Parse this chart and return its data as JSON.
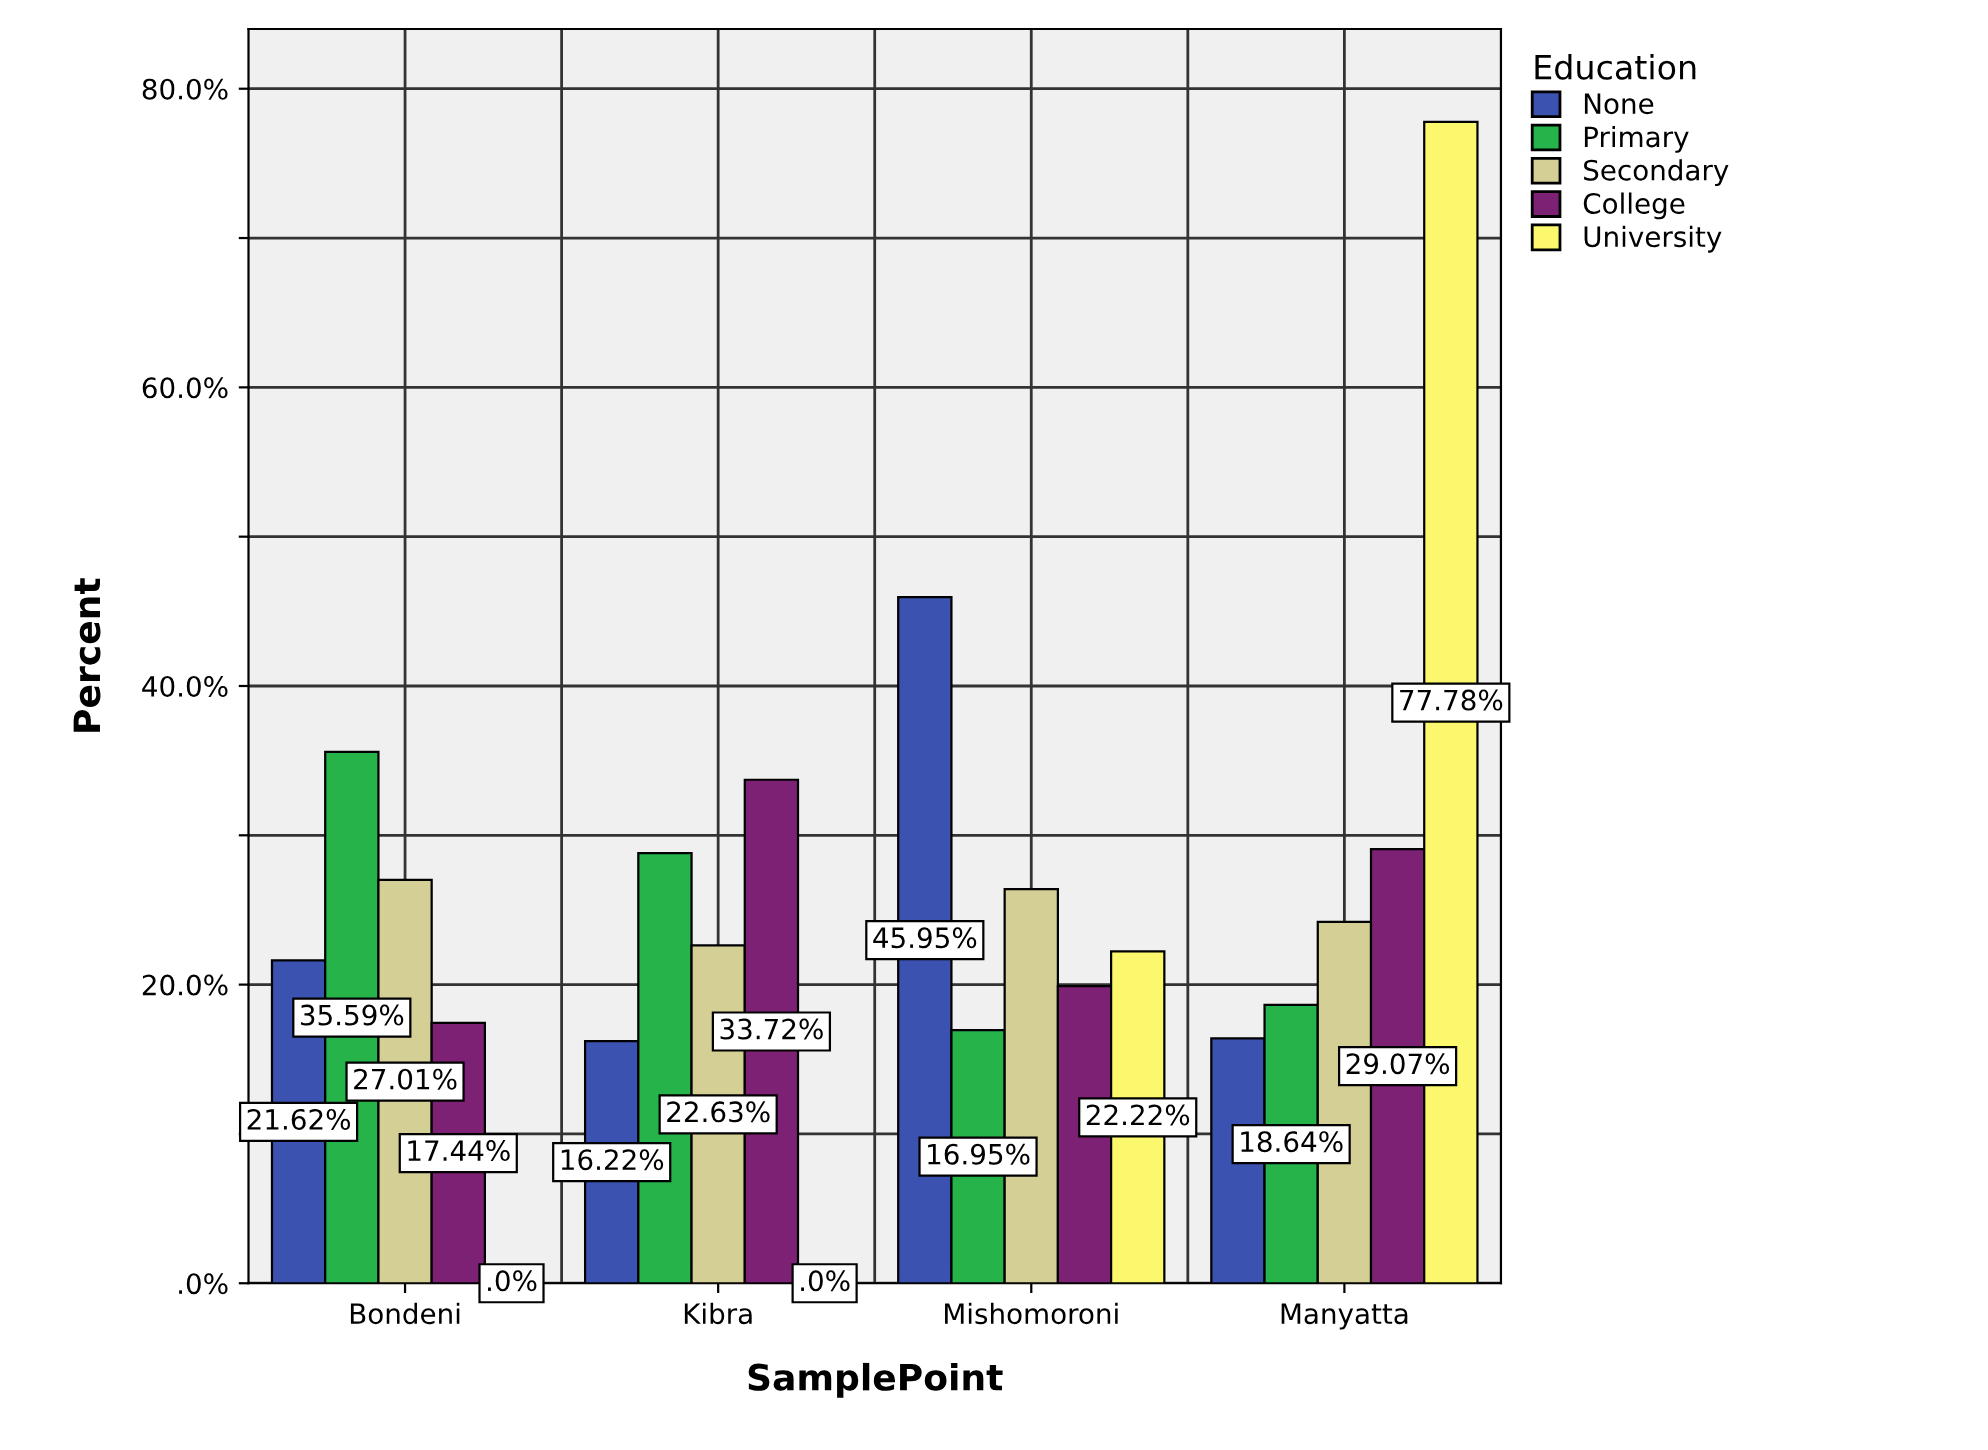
{
  "chart_data": {
    "type": "bar",
    "xlabel": "SamplePoint",
    "ylabel": "Percent",
    "legend_title": "Education",
    "categories": [
      "Bondeni",
      "Kibra",
      "Mishomoroni",
      "Manyatta"
    ],
    "series": [
      {
        "name": "None",
        "color": "#3b52b0",
        "values": [
          21.62,
          16.22,
          45.95,
          16.4
        ],
        "value_labels": [
          "21.62%",
          "16.22%",
          "45.95%",
          null
        ]
      },
      {
        "name": "Primary",
        "color": "#25b34a",
        "values": [
          35.59,
          28.8,
          16.95,
          18.64
        ],
        "value_labels": [
          "35.59%",
          null,
          "16.95%",
          "18.64%"
        ]
      },
      {
        "name": "Secondary",
        "color": "#d4cf95",
        "values": [
          27.01,
          22.63,
          26.4,
          24.2
        ],
        "value_labels": [
          "27.01%",
          "22.63%",
          null,
          null
        ]
      },
      {
        "name": "College",
        "color": "#7d2174",
        "values": [
          17.44,
          33.72,
          19.9,
          29.07
        ],
        "value_labels": [
          "17.44%",
          "33.72%",
          null,
          "29.07%"
        ]
      },
      {
        "name": "University",
        "color": "#fbf86e",
        "values": [
          0,
          0,
          22.22,
          77.78
        ],
        "value_labels": [
          ".0%",
          ".0%",
          "22.22%",
          "77.78%"
        ]
      }
    ],
    "ylim": [
      0,
      84
    ],
    "yticks": [
      {
        "value": 0,
        "label": ".0%"
      },
      {
        "value": 10,
        "label": null
      },
      {
        "value": 20,
        "label": "20.0%"
      },
      {
        "value": 30,
        "label": null
      },
      {
        "value": 40,
        "label": "40.0%"
      },
      {
        "value": 50,
        "label": null
      },
      {
        "value": 60,
        "label": "60.0%"
      },
      {
        "value": 70,
        "label": null
      },
      {
        "value": 80,
        "label": "80.0%"
      }
    ],
    "grid": true,
    "legend": "top right"
  }
}
